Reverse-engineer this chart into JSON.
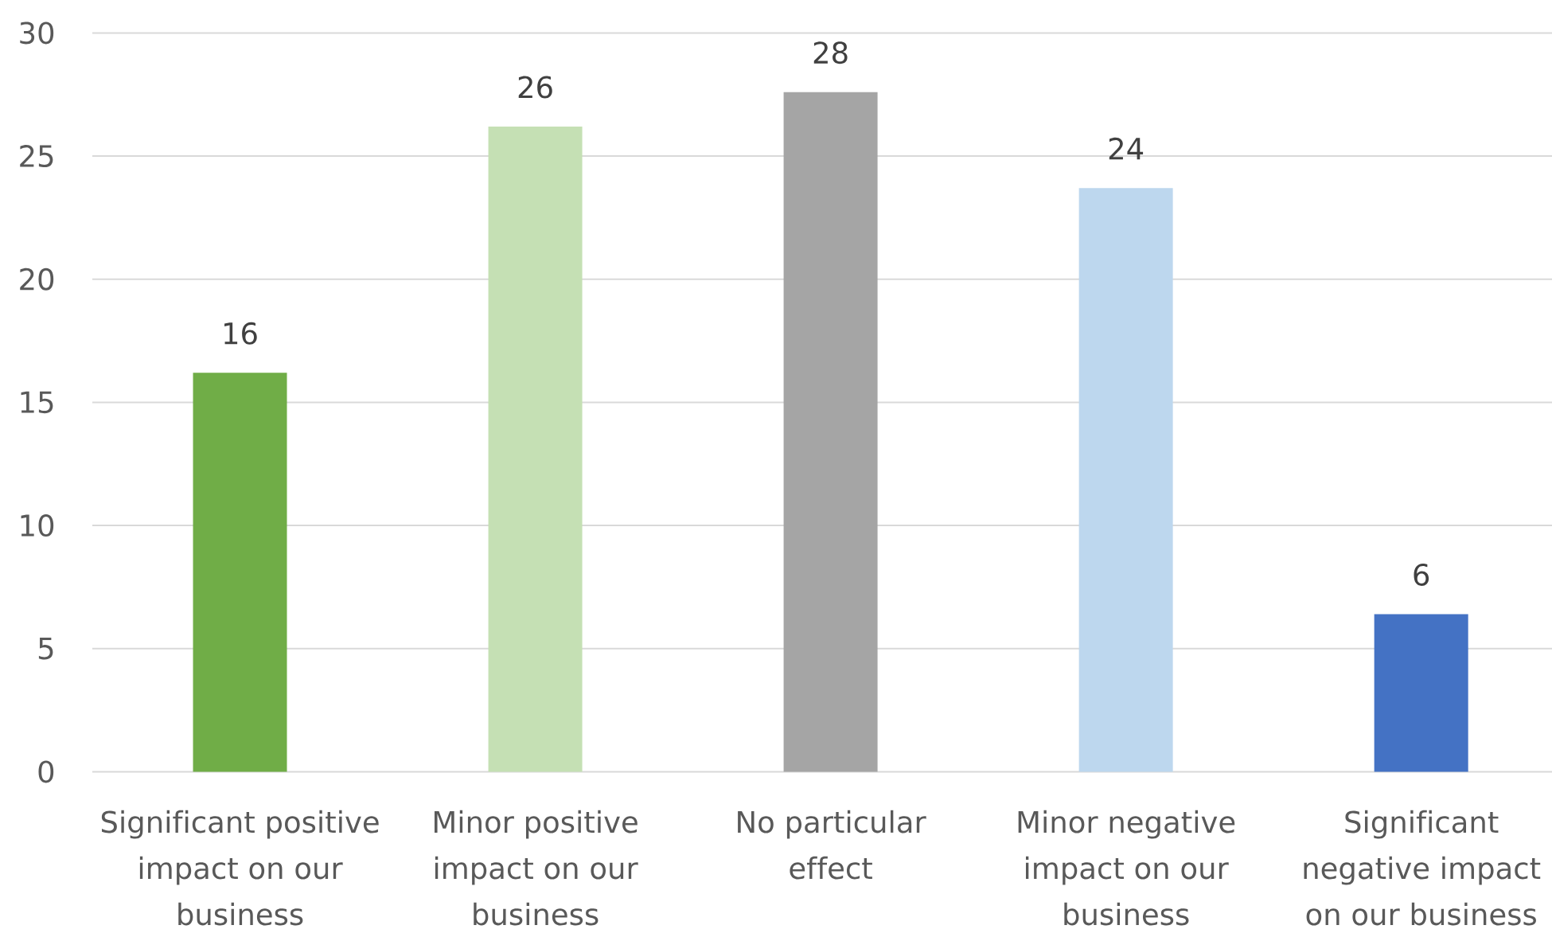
{
  "chart_data": {
    "type": "bar",
    "categories": [
      "Significant positive impact on our business",
      "Minor positive impact on our business",
      "No particular effect",
      "Minor negative impact on our business",
      "Significant negative impact on our business"
    ],
    "values": [
      16.2,
      26.2,
      27.6,
      23.7,
      6.4
    ],
    "value_labels": [
      "16",
      "26",
      "28",
      "24",
      "6"
    ],
    "colors": [
      "#70ad47",
      "#c5e0b4",
      "#a5a5a5",
      "#bdd7ee",
      "#4472c4"
    ],
    "ylim": [
      0,
      30
    ],
    "yticks": [
      0,
      5,
      10,
      15,
      20,
      25,
      30
    ],
    "grid": "y"
  }
}
